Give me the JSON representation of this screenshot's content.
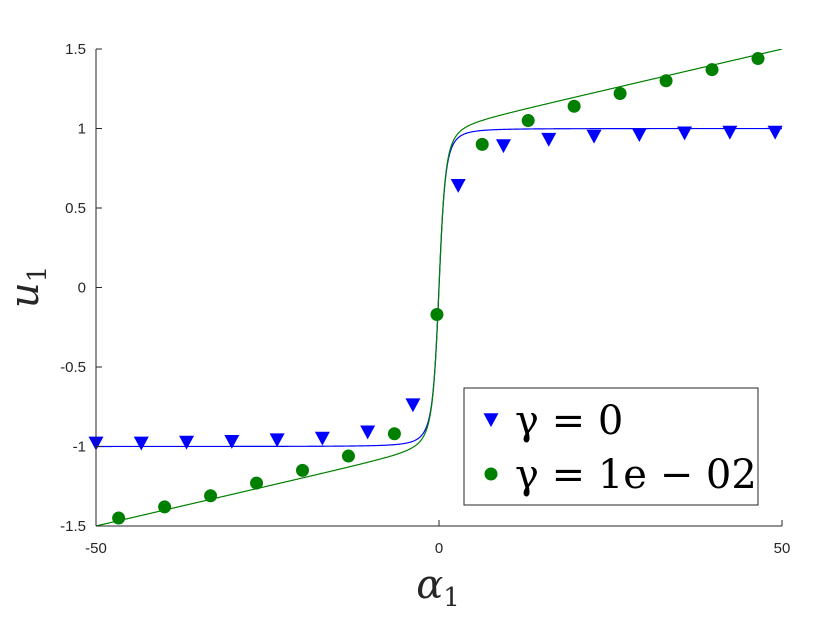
{
  "chart_data": {
    "type": "line",
    "xlabel": {
      "main": "α",
      "sub": "1"
    },
    "ylabel": {
      "main": "u",
      "sub": "1"
    },
    "xlim": [
      -50,
      50
    ],
    "ylim": [
      -1.5,
      1.5
    ],
    "xticks": [
      -50,
      0,
      50
    ],
    "xtick_labels": [
      "-50",
      "0",
      "50"
    ],
    "yticks": [
      -1.5,
      -1,
      -0.5,
      0,
      0.5,
      1,
      1.5
    ],
    "ytick_labels": [
      "-1.5",
      "-1",
      "-0.5",
      "0",
      "0.5",
      "1",
      "1.5"
    ],
    "grid": false,
    "legend_position": "bottom-right",
    "series": [
      {
        "name": "γ = 0",
        "color": "#0000ff",
        "marker": "triangle-down",
        "curve": "alpha/sqrt(1+alpha^2)",
        "points": [
          [
            -50,
            -0.98
          ],
          [
            -43.4,
            -0.98
          ],
          [
            -36.8,
            -0.975
          ],
          [
            -30.2,
            -0.97
          ],
          [
            -23.6,
            -0.96
          ],
          [
            -17,
            -0.95
          ],
          [
            -10.4,
            -0.91
          ],
          [
            -3.8,
            -0.74
          ],
          [
            2.8,
            0.64
          ],
          [
            9.4,
            0.89
          ],
          [
            16,
            0.93
          ],
          [
            22.6,
            0.95
          ],
          [
            29.2,
            0.96
          ],
          [
            35.8,
            0.97
          ],
          [
            42.4,
            0.975
          ],
          [
            49,
            0.975
          ]
        ]
      },
      {
        "name": "γ = 1e − 02",
        "color": "#008000",
        "marker": "circle",
        "curve": "alpha/sqrt(1+alpha^2)+0.01*alpha",
        "points": [
          [
            -46.7,
            -1.45
          ],
          [
            -40,
            -1.38
          ],
          [
            -33.3,
            -1.31
          ],
          [
            -26.6,
            -1.23
          ],
          [
            -19.9,
            -1.15
          ],
          [
            -13.2,
            -1.06
          ],
          [
            -6.5,
            -0.92
          ],
          [
            -0.3,
            -0.17
          ],
          [
            6.3,
            0.9
          ],
          [
            13,
            1.05
          ],
          [
            19.7,
            1.14
          ],
          [
            26.4,
            1.22
          ],
          [
            33.1,
            1.3
          ],
          [
            39.8,
            1.37
          ],
          [
            46.5,
            1.44
          ]
        ]
      }
    ]
  }
}
